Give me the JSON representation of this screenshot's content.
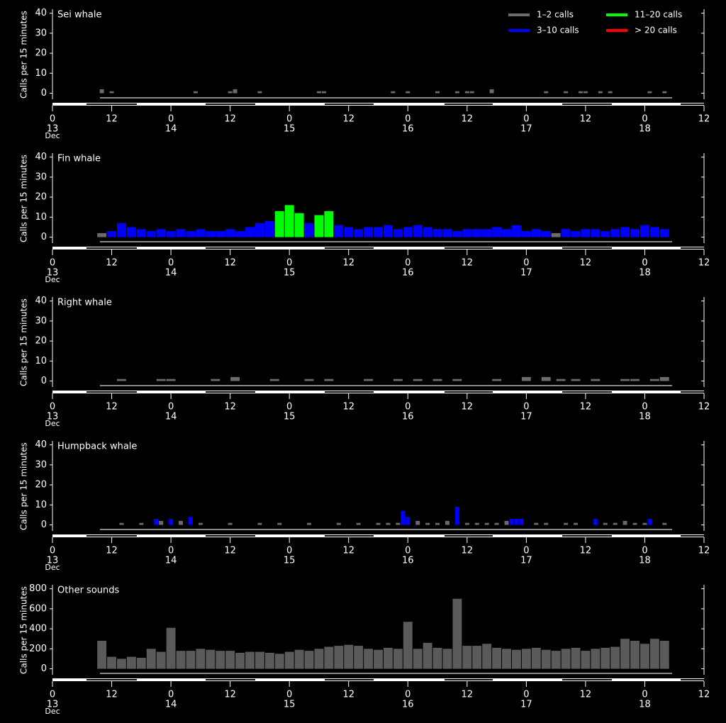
{
  "chart_data": [
    {
      "type": "bar",
      "title": "Sei whale",
      "y_label": "Calls per 15 minutes",
      "xlim": [
        0,
        132
      ],
      "xticks": [
        0,
        12,
        {
          "value": 24,
          "label": "0"
        },
        {
          "value": 36,
          "label": "12"
        },
        {
          "value": 48,
          "label": "0"
        },
        {
          "value": 60,
          "label": "12"
        },
        {
          "value": 72,
          "label": "0"
        },
        {
          "value": 84,
          "label": "12"
        },
        {
          "value": 96,
          "label": "0"
        },
        {
          "value": 108,
          "label": "12"
        },
        {
          "value": 120,
          "label": "0"
        },
        {
          "value": 132,
          "label": "12"
        }
      ],
      "day_labels": [
        {
          "value": 0,
          "label": "13"
        },
        {
          "value": 24,
          "label": "14"
        },
        {
          "value": 48,
          "label": "15"
        },
        {
          "value": 72,
          "label": "16"
        },
        {
          "value": 96,
          "label": "17"
        },
        {
          "value": 120,
          "label": "18"
        }
      ],
      "month_label": "Dec",
      "ylim": [
        -3,
        42
      ],
      "yticks": [
        0,
        10,
        20,
        30,
        40
      ],
      "series": [
        {
          "name": "1–2 calls",
          "color": "#6b6b6b",
          "x": [
            10,
            12,
            29,
            36,
            37,
            42,
            54,
            55,
            69,
            72,
            78,
            82,
            84,
            85,
            89,
            100,
            104,
            107,
            108,
            111,
            113,
            121,
            124
          ],
          "values": [
            2,
            1,
            1,
            1,
            2,
            1,
            1,
            1,
            1,
            1,
            1,
            1,
            1,
            1,
            2,
            1,
            1,
            1,
            1,
            1,
            1,
            1,
            1
          ]
        },
        {
          "name": "3–10 calls",
          "color": "#0000ff",
          "x": [],
          "values": []
        },
        {
          "name": "11–20 calls",
          "color": "#00ff00",
          "x": [],
          "values": []
        },
        {
          "name": "> 20 calls",
          "color": "#ff0000",
          "x": [],
          "values": []
        }
      ]
    },
    {
      "type": "bar",
      "title": "Fin whale",
      "y_label": "Calls per 15 minutes",
      "xlim": [
        0,
        132
      ],
      "xticks": [
        0,
        12,
        {
          "value": 24,
          "label": "0"
        },
        {
          "value": 36,
          "label": "12"
        },
        {
          "value": 48,
          "label": "0"
        },
        {
          "value": 60,
          "label": "12"
        },
        {
          "value": 72,
          "label": "0"
        },
        {
          "value": 84,
          "label": "12"
        },
        {
          "value": 96,
          "label": "0"
        },
        {
          "value": 108,
          "label": "12"
        },
        {
          "value": 120,
          "label": "0"
        },
        {
          "value": 132,
          "label": "12"
        }
      ],
      "day_labels": [
        {
          "value": 0,
          "label": "13"
        },
        {
          "value": 24,
          "label": "14"
        },
        {
          "value": 48,
          "label": "15"
        },
        {
          "value": 72,
          "label": "16"
        },
        {
          "value": 96,
          "label": "17"
        },
        {
          "value": 120,
          "label": "18"
        }
      ],
      "month_label": "Dec",
      "ylim": [
        -3,
        42
      ],
      "yticks": [
        0,
        10,
        20,
        30,
        40
      ],
      "series": [
        {
          "color": "#6b6b6b",
          "x": [
            10,
            102
          ],
          "values": [
            2,
            2
          ]
        },
        {
          "color": "#0000ff",
          "x": [
            12,
            14,
            16,
            18,
            20,
            22,
            24,
            26,
            28,
            30,
            32,
            34,
            36,
            38,
            40,
            42,
            44,
            52,
            58,
            60,
            62,
            64,
            66,
            68,
            70,
            72,
            74,
            76,
            78,
            80,
            82,
            84,
            86,
            88,
            90,
            92,
            94,
            96,
            98,
            100,
            104,
            106,
            108,
            110,
            112,
            114,
            116,
            118,
            120,
            122,
            124
          ],
          "values": [
            3,
            7,
            5,
            4,
            3,
            4,
            3,
            4,
            3,
            4,
            3,
            3,
            4,
            3,
            5,
            7,
            8,
            7,
            6,
            5,
            4,
            5,
            5,
            6,
            4,
            5,
            6,
            5,
            4,
            4,
            3,
            4,
            4,
            4,
            5,
            4,
            6,
            3,
            4,
            3,
            4,
            3,
            4,
            4,
            3,
            4,
            5,
            4,
            6,
            5,
            4
          ]
        },
        {
          "color": "#00ff00",
          "x": [
            46,
            48,
            50,
            54,
            56
          ],
          "values": [
            13,
            16,
            12,
            11,
            13
          ]
        }
      ]
    },
    {
      "type": "bar",
      "title": "Right whale",
      "y_label": "Calls per 15 minutes",
      "xlim": [
        0,
        132
      ],
      "xticks": [
        0,
        12,
        {
          "value": 24,
          "label": "0"
        },
        {
          "value": 36,
          "label": "12"
        },
        {
          "value": 48,
          "label": "0"
        },
        {
          "value": 60,
          "label": "12"
        },
        {
          "value": 72,
          "label": "0"
        },
        {
          "value": 84,
          "label": "12"
        },
        {
          "value": 96,
          "label": "0"
        },
        {
          "value": 108,
          "label": "12"
        },
        {
          "value": 120,
          "label": "0"
        },
        {
          "value": 132,
          "label": "12"
        }
      ],
      "day_labels": [
        {
          "value": 0,
          "label": "13"
        },
        {
          "value": 24,
          "label": "14"
        },
        {
          "value": 48,
          "label": "15"
        },
        {
          "value": 72,
          "label": "16"
        },
        {
          "value": 96,
          "label": "17"
        },
        {
          "value": 120,
          "label": "18"
        }
      ],
      "month_label": "Dec",
      "ylim": [
        -3,
        42
      ],
      "yticks": [
        0,
        10,
        20,
        30,
        40
      ],
      "series": [
        {
          "color": "#6b6b6b",
          "x": [
            14,
            22,
            24,
            33,
            37,
            45,
            52,
            56,
            64,
            70,
            74,
            78,
            82,
            90,
            96,
            100,
            103,
            106,
            110,
            116,
            118,
            122,
            124
          ],
          "values": [
            1,
            1,
            1,
            1,
            2,
            1,
            1,
            1,
            1,
            1,
            1,
            1,
            1,
            1,
            2,
            2,
            1,
            1,
            1,
            1,
            1,
            1,
            2
          ]
        }
      ]
    },
    {
      "type": "bar",
      "title": "Humpback whale",
      "y_label": "Calls per 15 minutes",
      "xlim": [
        0,
        132
      ],
      "xticks": [
        0,
        12,
        {
          "value": 24,
          "label": "0"
        },
        {
          "value": 36,
          "label": "12"
        },
        {
          "value": 48,
          "label": "0"
        },
        {
          "value": 60,
          "label": "12"
        },
        {
          "value": 72,
          "label": "0"
        },
        {
          "value": 84,
          "label": "12"
        },
        {
          "value": 96,
          "label": "0"
        },
        {
          "value": 108,
          "label": "12"
        },
        {
          "value": 120,
          "label": "0"
        },
        {
          "value": 132,
          "label": "12"
        }
      ],
      "day_labels": [
        {
          "value": 0,
          "label": "13"
        },
        {
          "value": 24,
          "label": "14"
        },
        {
          "value": 48,
          "label": "15"
        },
        {
          "value": 72,
          "label": "16"
        },
        {
          "value": 96,
          "label": "17"
        },
        {
          "value": 120,
          "label": "18"
        }
      ],
      "month_label": "Dec",
      "ylim": [
        -3,
        42
      ],
      "yticks": [
        0,
        10,
        20,
        30,
        40
      ],
      "series": [
        {
          "color": "#6b6b6b",
          "x": [
            14,
            18,
            22,
            26,
            30,
            36,
            42,
            46,
            52,
            58,
            62,
            66,
            68,
            70,
            74,
            76,
            78,
            80,
            84,
            86,
            88,
            90,
            92,
            98,
            100,
            104,
            106,
            112,
            114,
            116,
            118,
            120,
            124
          ],
          "values": [
            1,
            1,
            2,
            2,
            1,
            1,
            1,
            1,
            1,
            1,
            1,
            1,
            1,
            1,
            2,
            1,
            1,
            2,
            1,
            1,
            1,
            1,
            2,
            1,
            1,
            1,
            1,
            1,
            1,
            2,
            1,
            1,
            1
          ]
        },
        {
          "color": "#0000ff",
          "x": [
            21,
            24,
            28,
            71,
            72,
            82,
            93,
            94,
            95,
            110,
            121
          ],
          "values": [
            3,
            3,
            4,
            7,
            4,
            9,
            3,
            3,
            3,
            3,
            3
          ]
        }
      ]
    },
    {
      "type": "bar",
      "title": "Other sounds",
      "y_label": "Calls per 15 minutes",
      "xlim": [
        0,
        132
      ],
      "xticks": [
        0,
        12,
        {
          "value": 24,
          "label": "0"
        },
        {
          "value": 36,
          "label": "12"
        },
        {
          "value": 48,
          "label": "0"
        },
        {
          "value": 60,
          "label": "12"
        },
        {
          "value": 72,
          "label": "0"
        },
        {
          "value": 84,
          "label": "12"
        },
        {
          "value": 96,
          "label": "0"
        },
        {
          "value": 108,
          "label": "12"
        },
        {
          "value": 120,
          "label": "0"
        },
        {
          "value": 132,
          "label": "12"
        }
      ],
      "day_labels": [
        {
          "value": 0,
          "label": "13"
        },
        {
          "value": 24,
          "label": "14"
        },
        {
          "value": 48,
          "label": "15"
        },
        {
          "value": 72,
          "label": "16"
        },
        {
          "value": 96,
          "label": "17"
        },
        {
          "value": 120,
          "label": "18"
        }
      ],
      "month_label": "Dec",
      "ylim": [
        -60,
        840
      ],
      "yticks": [
        0,
        200,
        400,
        600,
        800
      ],
      "series": [
        {
          "color": "#5a5a5a",
          "x": [
            10,
            12,
            14,
            16,
            18,
            20,
            22,
            24,
            26,
            28,
            30,
            32,
            34,
            36,
            38,
            40,
            42,
            44,
            46,
            48,
            50,
            52,
            54,
            56,
            58,
            60,
            62,
            64,
            66,
            68,
            70,
            72,
            74,
            76,
            78,
            80,
            82,
            84,
            86,
            88,
            90,
            92,
            94,
            96,
            98,
            100,
            102,
            104,
            106,
            108,
            110,
            112,
            114,
            116,
            118,
            120,
            122,
            124
          ],
          "values": [
            280,
            120,
            100,
            120,
            110,
            200,
            170,
            410,
            180,
            180,
            200,
            190,
            180,
            180,
            160,
            170,
            170,
            160,
            150,
            170,
            190,
            180,
            200,
            220,
            230,
            240,
            230,
            200,
            190,
            210,
            200,
            470,
            200,
            260,
            210,
            200,
            700,
            230,
            230,
            250,
            210,
            200,
            190,
            200,
            210,
            190,
            180,
            200,
            210,
            180,
            200,
            210,
            220,
            300,
            280,
            250,
            300,
            280
          ]
        }
      ]
    }
  ]
}
